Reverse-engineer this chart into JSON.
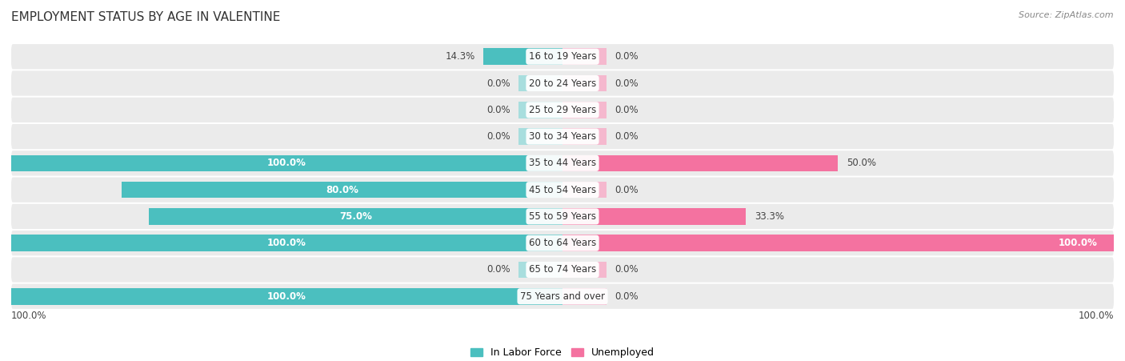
{
  "title": "EMPLOYMENT STATUS BY AGE IN VALENTINE",
  "source": "Source: ZipAtlas.com",
  "categories": [
    "16 to 19 Years",
    "20 to 24 Years",
    "25 to 29 Years",
    "30 to 34 Years",
    "35 to 44 Years",
    "45 to 54 Years",
    "55 to 59 Years",
    "60 to 64 Years",
    "65 to 74 Years",
    "75 Years and over"
  ],
  "in_labor_force": [
    14.3,
    0.0,
    0.0,
    0.0,
    100.0,
    80.0,
    75.0,
    100.0,
    0.0,
    100.0
  ],
  "unemployed": [
    0.0,
    0.0,
    0.0,
    0.0,
    50.0,
    0.0,
    33.3,
    100.0,
    0.0,
    0.0
  ],
  "labor_color": "#4BBFBF",
  "labor_color_light": "#A8DEDE",
  "unemployed_color": "#F472A0",
  "unemployed_color_light": "#F5B8CE",
  "row_bg_color": "#EBEBEB",
  "title_fontsize": 11,
  "label_fontsize": 8.5,
  "max_val": 100.0,
  "stub_size": 8.0
}
